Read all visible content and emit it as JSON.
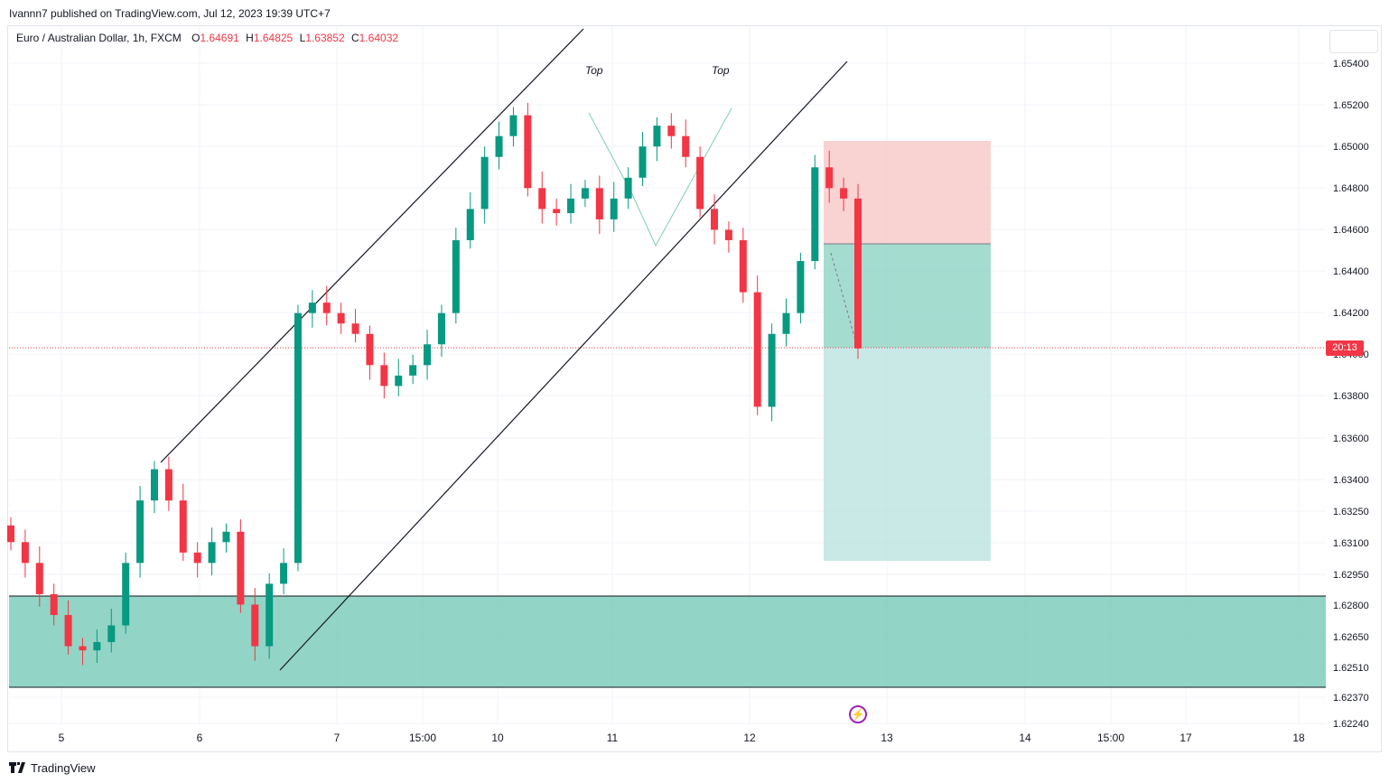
{
  "header": {
    "published_text": "Ivannn7 published on TradingView.com, Jul 12, 2023 19:39 UTC+7"
  },
  "legend": {
    "symbol": "Euro / Australian Dollar, 1h, FXCM",
    "open_label": "O",
    "open_value": "1.64691",
    "high_label": "H",
    "high_value": "1.64825",
    "low_label": "L",
    "low_value": "1.63852",
    "close_label": "C",
    "close_value": "1.64032"
  },
  "price_tag": "20:13",
  "annotations": {
    "top1": "Top",
    "top2": "Top"
  },
  "footer": {
    "brand": "TradingView"
  },
  "colors": {
    "up": "#089981",
    "down": "#f23645",
    "zone": "#7fcdbb",
    "stop": "#f8c7c7",
    "target": "#b2dfdb"
  },
  "chart_data": {
    "type": "candlestick",
    "title": "",
    "xlabel": "",
    "ylabel": "",
    "x_ticks": [
      "5",
      "6",
      "7",
      "15:00",
      "10",
      "11",
      "12",
      "13",
      "14",
      "15:00",
      "17",
      "18"
    ],
    "y_ticks": [
      "1.65400",
      "1.65200",
      "1.65000",
      "1.64800",
      "1.64600",
      "1.64400",
      "1.64200",
      "1.64000",
      "1.63800",
      "1.63600",
      "1.63400",
      "1.63250",
      "1.63100",
      "1.62950",
      "1.62800",
      "1.62650",
      "1.62510",
      "1.62370",
      "1.62240"
    ],
    "last_price": 1.64032,
    "demand_zone": [
      1.6244,
      1.6285
    ],
    "position": {
      "stop": 1.6502,
      "entry": 1.6453,
      "target": 1.63
    },
    "series_close_approx": [
      1.631,
      1.63,
      1.6285,
      1.6275,
      1.626,
      1.6258,
      1.6262,
      1.627,
      1.63,
      1.633,
      1.6345,
      1.633,
      1.6305,
      1.63,
      1.631,
      1.6315,
      1.628,
      1.626,
      1.629,
      1.63,
      1.642,
      1.6425,
      1.642,
      1.6415,
      1.641,
      1.6395,
      1.6385,
      1.639,
      1.6395,
      1.6405,
      1.642,
      1.6455,
      1.647,
      1.6495,
      1.6505,
      1.6515,
      1.648,
      1.647,
      1.6468,
      1.6475,
      1.648,
      1.6465,
      1.6475,
      1.6485,
      1.65,
      1.651,
      1.6505,
      1.6495,
      1.647,
      1.646,
      1.6455,
      1.643,
      1.6375,
      1.641,
      1.642,
      1.6445,
      1.649,
      1.648,
      1.6475,
      1.6403
    ]
  }
}
